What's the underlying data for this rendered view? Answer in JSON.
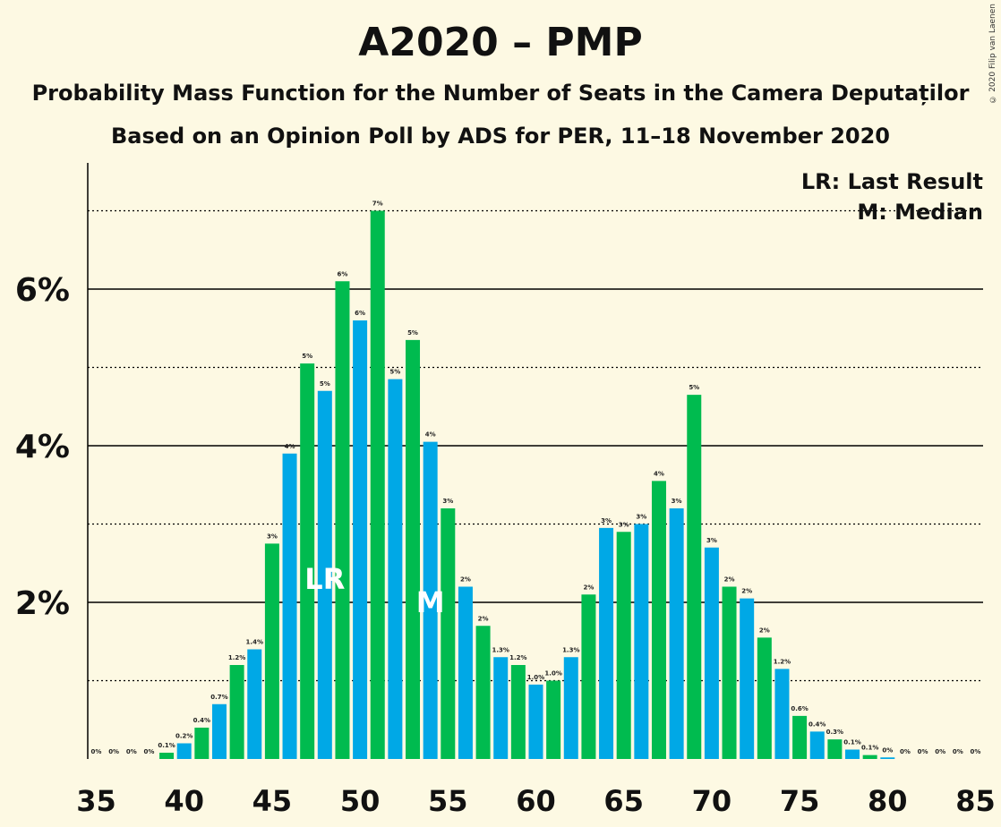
{
  "header": {
    "title": "A2020 – PMP",
    "subtitle": "Probability Mass Function for the Number of Seats in the Camera Deputaților",
    "subtitle2": "Based on an Opinion Poll by ADS for PER, 11–18 November 2020",
    "copyright": "© 2020 Filip van Laenen"
  },
  "legend": {
    "last_result": "LR: Last Result",
    "median": "M: Median"
  },
  "colors": {
    "background": "#fdf9e3",
    "blue": "#00a8e6",
    "green": "#00bb4f"
  },
  "chart_data": {
    "type": "bar",
    "x": [
      35,
      36,
      37,
      38,
      39,
      40,
      41,
      42,
      43,
      44,
      45,
      46,
      47,
      48,
      49,
      50,
      51,
      52,
      53,
      54,
      55,
      56,
      57,
      58,
      59,
      60,
      61,
      62,
      63,
      64,
      65,
      66,
      67,
      68,
      69,
      70,
      71,
      72,
      73,
      74,
      75,
      76,
      77,
      78,
      79,
      80,
      81,
      82,
      83,
      84,
      85
    ],
    "values": [
      0,
      0,
      0,
      0,
      0.08,
      0.2,
      0.4,
      0.7,
      1.2,
      1.4,
      2.75,
      3.9,
      5.05,
      4.7,
      6.1,
      5.6,
      7.0,
      4.85,
      5.35,
      4.05,
      3.2,
      2.2,
      1.7,
      1.3,
      1.2,
      0.95,
      1.0,
      1.3,
      2.1,
      2.95,
      2.9,
      3.0,
      3.55,
      3.2,
      4.65,
      2.7,
      2.2,
      2.05,
      1.55,
      1.15,
      0.55,
      0.35,
      0.25,
      0.12,
      0.05,
      0.02,
      0,
      0,
      0,
      0,
      0
    ],
    "labels": [
      "0%",
      "0%",
      "0%",
      "0%",
      "0.1%",
      "0.2%",
      "0.4%",
      "0.7%",
      "1.2%",
      "1.4%",
      "3%",
      "4%",
      "5%",
      "5%",
      "6%",
      "6%",
      "7%",
      "5%",
      "5%",
      "4%",
      "3%",
      "2%",
      "2%",
      "1.3%",
      "1.2%",
      "1.0%",
      "1.0%",
      "1.3%",
      "2%",
      "3%",
      "3%",
      "3%",
      "4%",
      "3%",
      "5%",
      "3%",
      "2%",
      "2%",
      "2%",
      "1.2%",
      "0.6%",
      "0.4%",
      "0.3%",
      "0.1%",
      "0.1%",
      "0%",
      "0%",
      "0%",
      "0%",
      "0%",
      "0%"
    ],
    "x_ticks": [
      35,
      40,
      45,
      50,
      55,
      60,
      65,
      70,
      75,
      80,
      85
    ],
    "y_ticks": [
      2,
      4,
      6
    ],
    "y_tick_labels": [
      "2%",
      "4%",
      "6%"
    ],
    "y_minor_ticks": [
      1,
      3,
      5,
      7
    ],
    "ylim": [
      0,
      7.5
    ],
    "last_result_seat": 48,
    "last_result_label": "LR",
    "median_seat": 54,
    "median_label": "M"
  }
}
